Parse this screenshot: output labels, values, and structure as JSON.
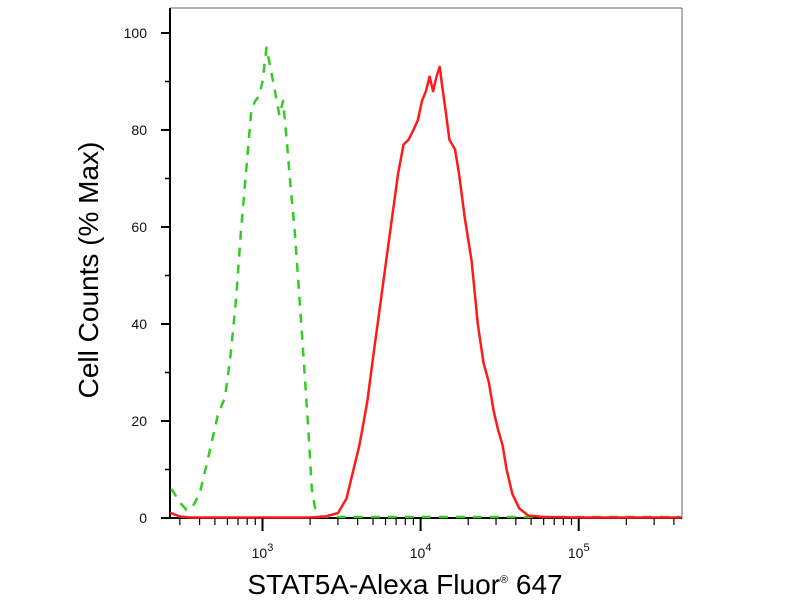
{
  "chart_data": {
    "type": "line",
    "xlabel": {
      "main": "STAT5A-Alexa Fluor",
      "sup": "®",
      "tail": " 647"
    },
    "ylabel": "Cell Counts (% Max)",
    "xscale": "log",
    "xlim": [
      260,
      450000
    ],
    "ylim": [
      0,
      100
    ],
    "x_ticks": [
      {
        "value": 1000,
        "base": "10",
        "exp": "3"
      },
      {
        "value": 10000,
        "base": "10",
        "exp": "4"
      },
      {
        "value": 100000,
        "base": "10",
        "exp": "5"
      }
    ],
    "y_ticks": [
      0,
      20,
      40,
      60,
      80,
      100
    ],
    "grid": false,
    "legend": "none",
    "series": [
      {
        "color": "#33cc22",
        "style": "dashed",
        "points": [
          [
            265,
            6
          ],
          [
            280,
            4.8
          ],
          [
            300,
            3.2
          ],
          [
            330,
            1.7
          ],
          [
            360,
            2.2
          ],
          [
            400,
            5
          ],
          [
            450,
            12
          ],
          [
            520,
            21
          ],
          [
            580,
            25
          ],
          [
            630,
            34
          ],
          [
            680,
            45
          ],
          [
            730,
            59
          ],
          [
            790,
            72
          ],
          [
            850,
            84
          ],
          [
            900,
            86
          ],
          [
            950,
            87
          ],
          [
            1000,
            90
          ],
          [
            1060,
            97
          ],
          [
            1120,
            93
          ],
          [
            1200,
            88
          ],
          [
            1280,
            83
          ],
          [
            1350,
            86
          ],
          [
            1430,
            77
          ],
          [
            1500,
            69
          ],
          [
            1600,
            59
          ],
          [
            1700,
            47
          ],
          [
            1820,
            33
          ],
          [
            1950,
            18
          ],
          [
            2050,
            6
          ],
          [
            2150,
            2
          ],
          [
            2350,
            0.3
          ],
          [
            2700,
            0.2
          ],
          [
            3500,
            0.2
          ],
          [
            6000,
            0.2
          ],
          [
            15000,
            0.2
          ],
          [
            40000,
            0.2
          ],
          [
            100000,
            0.2
          ],
          [
            440000,
            0.2
          ]
        ]
      },
      {
        "color": "#ff1a1a",
        "style": "solid",
        "points": [
          [
            265,
            1
          ],
          [
            300,
            0.3
          ],
          [
            350,
            0.1
          ],
          [
            500,
            0.1
          ],
          [
            1000,
            0.1
          ],
          [
            2000,
            0.1
          ],
          [
            2500,
            0.3
          ],
          [
            3000,
            1
          ],
          [
            3400,
            4
          ],
          [
            3700,
            9
          ],
          [
            4100,
            15
          ],
          [
            4600,
            24
          ],
          [
            5000,
            33
          ],
          [
            5500,
            43
          ],
          [
            6000,
            52
          ],
          [
            6600,
            62
          ],
          [
            7200,
            71
          ],
          [
            7800,
            77
          ],
          [
            8400,
            78
          ],
          [
            9000,
            80
          ],
          [
            9600,
            82
          ],
          [
            10200,
            86
          ],
          [
            10800,
            88
          ],
          [
            11400,
            91
          ],
          [
            12000,
            88
          ],
          [
            12600,
            91
          ],
          [
            13200,
            93
          ],
          [
            13700,
            89
          ],
          [
            14400,
            84
          ],
          [
            15200,
            78
          ],
          [
            16500,
            76
          ],
          [
            17500,
            71
          ],
          [
            19000,
            62
          ],
          [
            21000,
            53
          ],
          [
            23000,
            40
          ],
          [
            25000,
            32
          ],
          [
            27000,
            28
          ],
          [
            29000,
            22
          ],
          [
            31000,
            18
          ],
          [
            33000,
            15
          ],
          [
            35000,
            10
          ],
          [
            38000,
            5
          ],
          [
            42000,
            2
          ],
          [
            48000,
            0.5
          ],
          [
            60000,
            0.2
          ],
          [
            100000,
            0.1
          ],
          [
            440000,
            0.1
          ]
        ]
      }
    ]
  }
}
